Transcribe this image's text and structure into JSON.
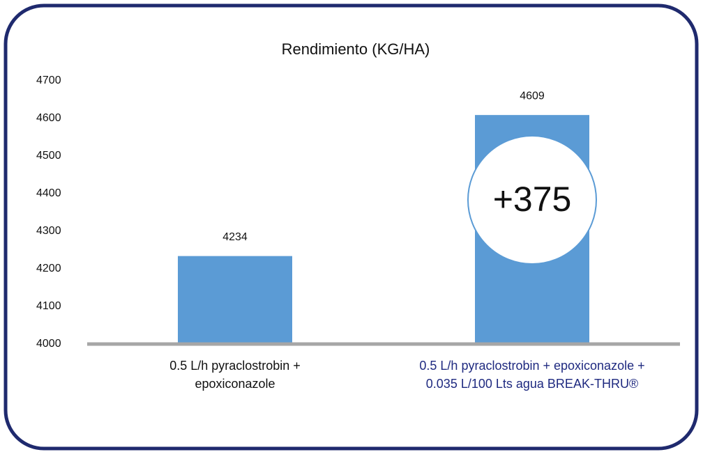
{
  "chart_data": {
    "type": "bar",
    "title": "Rendimiento (KG/HA)",
    "categories": [
      "0.5 L/h pyraclostrobin + epoxiconazole",
      "0.5 L/h pyraclostrobin + epoxiconazole + 0.035 L/100 Lts agua BREAK-THRU®"
    ],
    "category_colors": [
      "#111111",
      "#1f2a80"
    ],
    "values": [
      4234,
      4609
    ],
    "color": "#5b9bd5",
    "ylim": [
      4000,
      4700
    ],
    "yticks": [
      4000,
      4100,
      4200,
      4300,
      4400,
      4500,
      4600,
      4700
    ],
    "grid": false,
    "annotation": "+375"
  }
}
